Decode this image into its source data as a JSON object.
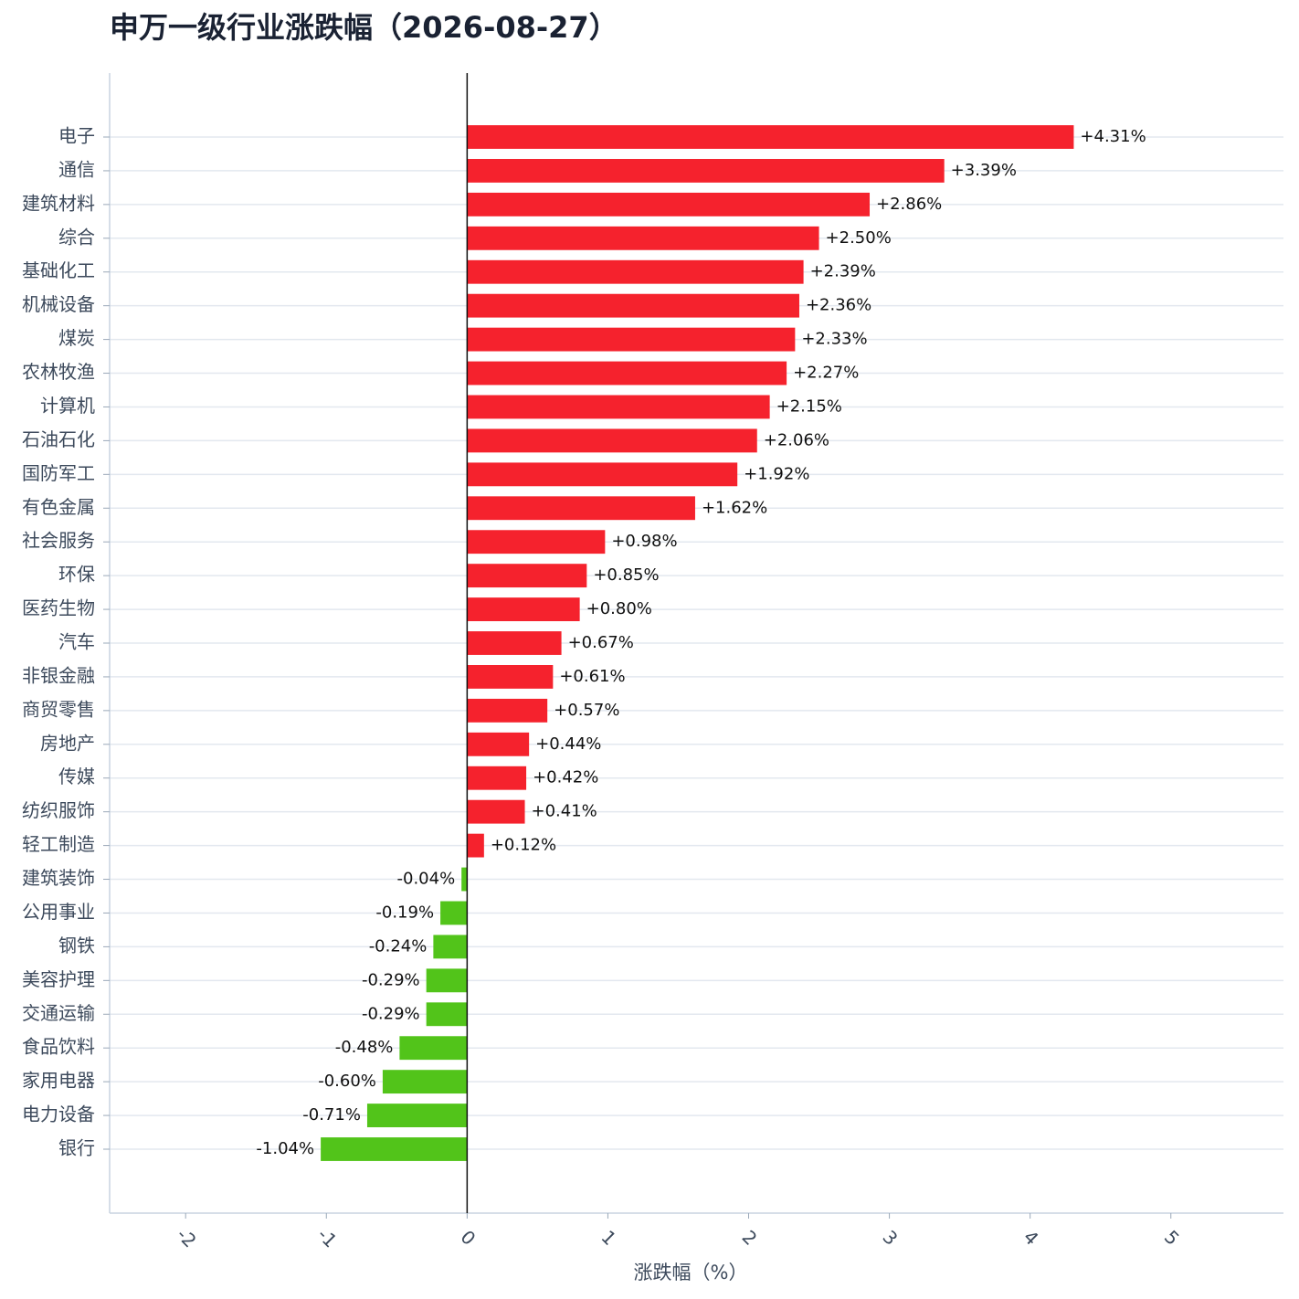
{
  "chart_data": {
    "type": "hbar",
    "title": "申万一级行业涨跌幅（2026-08-27）",
    "x_label": "涨跌幅（%）",
    "categories": [
      "电子",
      "通信",
      "建筑材料",
      "综合",
      "基础化工",
      "机械设备",
      "煤炭",
      "农林牧渔",
      "计算机",
      "石油石化",
      "国防军工",
      "有色金属",
      "社会服务",
      "环保",
      "医药生物",
      "汽车",
      "非银金融",
      "商贸零售",
      "房地产",
      "传媒",
      "纺织服饰",
      "轻工制造",
      "建筑装饰",
      "公用事业",
      "钢铁",
      "美容护理",
      "交通运输",
      "食品饮料",
      "家用电器",
      "电力设备",
      "银行"
    ],
    "values": [
      4.31,
      3.39,
      2.86,
      2.5,
      2.39,
      2.36,
      2.33,
      2.27,
      2.15,
      2.06,
      1.92,
      1.62,
      0.98,
      0.85,
      0.8,
      0.67,
      0.61,
      0.57,
      0.44,
      0.42,
      0.41,
      0.12,
      -0.04,
      -0.19,
      -0.24,
      -0.29,
      -0.29,
      -0.48,
      -0.6,
      -0.71,
      -1.04
    ],
    "value_labels": [
      "+4.31%",
      "+3.39%",
      "+2.86%",
      "+2.50%",
      "+2.39%",
      "+2.36%",
      "+2.33%",
      "+2.27%",
      "+2.15%",
      "+2.06%",
      "+1.92%",
      "+1.62%",
      "+0.98%",
      "+0.85%",
      "+0.80%",
      "+0.67%",
      "+0.61%",
      "+0.57%",
      "+0.44%",
      "+0.42%",
      "+0.41%",
      "+0.12%",
      "-0.04%",
      "-0.19%",
      "-0.24%",
      "-0.29%",
      "-0.29%",
      "-0.48%",
      "-0.60%",
      "-0.71%",
      "-1.04%"
    ],
    "positive_color": "#f5222d",
    "negative_color": "#52c41a",
    "xlim": [
      -2.54,
      5.8
    ],
    "xticks": [
      -2,
      -1,
      0,
      1,
      2,
      3,
      4,
      5
    ],
    "grid": true
  }
}
